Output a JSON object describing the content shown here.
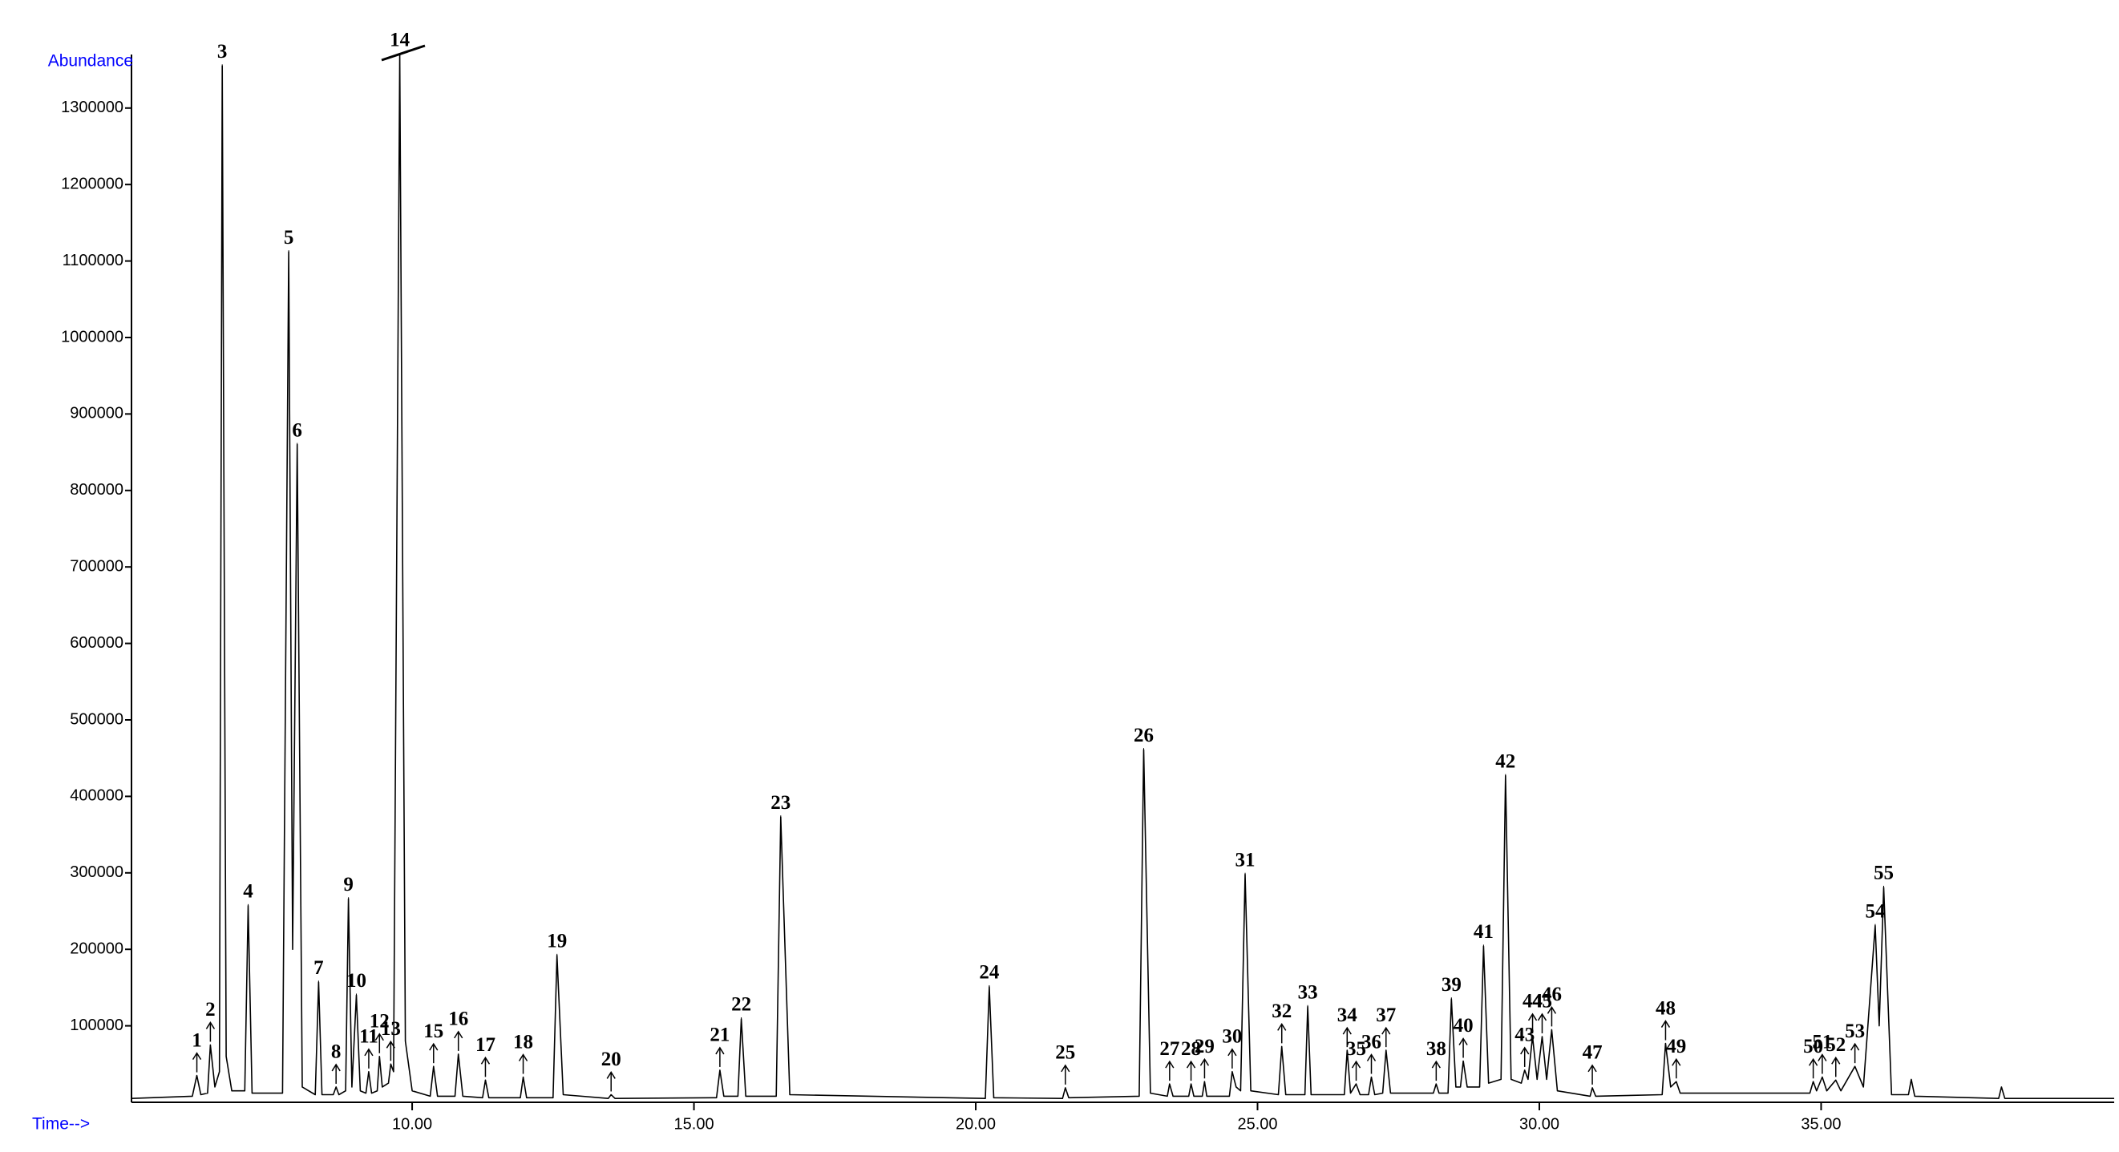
{
  "chart_data": {
    "type": "line",
    "ylabel": "Abundance",
    "xlabel": "Time-->",
    "color": "#000000",
    "xlim": [
      5.02,
      40.2
    ],
    "ylim": [
      0,
      1370000
    ],
    "xticks": [
      {
        "value": 10,
        "label": "10.00"
      },
      {
        "value": 15,
        "label": "15.00"
      },
      {
        "value": 20,
        "label": "20.00"
      },
      {
        "value": 25,
        "label": "25.00"
      },
      {
        "value": 30,
        "label": "30.00"
      },
      {
        "value": 35,
        "label": "35.00"
      }
    ],
    "yticks": [
      100000,
      200000,
      300000,
      400000,
      500000,
      600000,
      700000,
      800000,
      900000,
      1000000,
      1100000,
      1200000,
      1300000
    ],
    "x": [
      5.02,
      6.1,
      6.18,
      6.25,
      6.37,
      6.42,
      6.5,
      6.58,
      6.63,
      6.7,
      6.8,
      7.03,
      7.09,
      7.16,
      7.7,
      7.81,
      7.88,
      7.96,
      8.05,
      8.28,
      8.34,
      8.4,
      8.6,
      8.65,
      8.7,
      8.82,
      8.87,
      8.93,
      9.01,
      9.08,
      9.18,
      9.23,
      9.28,
      9.38,
      9.42,
      9.47,
      9.58,
      9.62,
      9.67,
      9.78,
      9.88,
      10.0,
      10.32,
      10.38,
      10.45,
      10.76,
      10.82,
      10.9,
      11.25,
      11.3,
      11.36,
      11.92,
      11.97,
      12.03,
      12.5,
      12.57,
      12.68,
      13.48,
      13.53,
      13.6,
      15.4,
      15.46,
      15.53,
      15.78,
      15.84,
      15.92,
      16.46,
      16.54,
      16.7,
      20.17,
      20.24,
      20.32,
      21.54,
      21.59,
      21.65,
      22.9,
      22.98,
      23.1,
      23.4,
      23.44,
      23.5,
      23.78,
      23.82,
      23.87,
      24.02,
      24.06,
      24.1,
      24.5,
      24.55,
      24.62,
      24.7,
      24.78,
      24.88,
      25.37,
      25.43,
      25.5,
      25.84,
      25.89,
      25.95,
      26.54,
      26.59,
      26.65,
      26.75,
      26.82,
      26.97,
      27.02,
      27.08,
      27.22,
      27.28,
      27.36,
      28.12,
      28.17,
      28.22,
      28.38,
      28.44,
      28.52,
      28.6,
      28.65,
      28.72,
      28.94,
      29.01,
      29.1,
      29.32,
      29.4,
      29.5,
      29.68,
      29.74,
      29.8,
      29.88,
      29.96,
      30.05,
      30.13,
      30.22,
      30.32,
      30.9,
      30.94,
      31.0,
      32.18,
      32.24,
      32.33,
      32.43,
      32.5,
      34.8,
      34.86,
      34.92,
      35.02,
      35.1,
      35.26,
      35.35,
      35.6,
      35.75,
      35.96,
      36.03,
      36.11,
      36.25,
      36.55,
      36.6,
      36.66,
      38.15,
      38.2,
      38.26,
      40.2
    ],
    "values": [
      5000,
      8000,
      35000,
      10000,
      12000,
      75000,
      20000,
      40000,
      1355000,
      60000,
      15000,
      15000,
      257000,
      12000,
      12000,
      1112000,
      200000,
      860000,
      20000,
      10000,
      157000,
      10000,
      10000,
      20000,
      10000,
      15000,
      266000,
      20000,
      140000,
      15000,
      12000,
      40000,
      12000,
      15000,
      60000,
      20000,
      25000,
      50000,
      40000,
      1370000,
      80000,
      15000,
      8000,
      47000,
      8000,
      8000,
      63000,
      8000,
      6000,
      29000,
      6000,
      6000,
      33000,
      6000,
      6000,
      192000,
      10000,
      5000,
      10000,
      5000,
      6000,
      42000,
      8000,
      8000,
      109000,
      8000,
      8000,
      373000,
      10000,
      5000,
      151000,
      6000,
      5000,
      19000,
      6000,
      8000,
      461000,
      12000,
      8000,
      24000,
      8000,
      8000,
      24000,
      8000,
      8000,
      27000,
      8000,
      8000,
      40000,
      20000,
      15000,
      298000,
      15000,
      10000,
      73000,
      10000,
      10000,
      125000,
      10000,
      10000,
      68000,
      12000,
      24000,
      10000,
      10000,
      33000,
      10000,
      12000,
      68000,
      12000,
      12000,
      24000,
      12000,
      12000,
      135000,
      20000,
      20000,
      54000,
      20000,
      20000,
      204000,
      25000,
      30000,
      427000,
      30000,
      25000,
      42000,
      30000,
      86000,
      30000,
      86000,
      30000,
      95000,
      15000,
      8000,
      19000,
      8000,
      10000,
      77000,
      20000,
      27000,
      12000,
      12000,
      27000,
      15000,
      33000,
      15000,
      29000,
      15000,
      47000,
      20000,
      231000,
      100000,
      281000,
      10000,
      10000,
      30000,
      8000,
      5000,
      20000,
      5000,
      5000
    ],
    "annotations": [
      {
        "text": "1",
        "x": 6.18,
        "y": 35000
      },
      {
        "text": "2",
        "x": 6.42,
        "y": 75000
      },
      {
        "text": "3",
        "x": 6.63,
        "y": 1355000
      },
      {
        "text": "4",
        "x": 7.09,
        "y": 257000
      },
      {
        "text": "5",
        "x": 7.81,
        "y": 1112000
      },
      {
        "text": "6",
        "x": 7.96,
        "y": 860000
      },
      {
        "text": "7",
        "x": 8.34,
        "y": 157000
      },
      {
        "text": "8",
        "x": 8.65,
        "y": 20000
      },
      {
        "text": "9",
        "x": 8.87,
        "y": 266000
      },
      {
        "text": "10",
        "x": 9.01,
        "y": 140000
      },
      {
        "text": "11",
        "x": 9.23,
        "y": 40000
      },
      {
        "text": "12",
        "x": 9.42,
        "y": 60000
      },
      {
        "text": "13",
        "x": 9.62,
        "y": 50000
      },
      {
        "text": "14",
        "x": 9.78,
        "y": 1370000
      },
      {
        "text": "15",
        "x": 10.38,
        "y": 47000
      },
      {
        "text": "16",
        "x": 10.82,
        "y": 63000
      },
      {
        "text": "17",
        "x": 11.3,
        "y": 29000
      },
      {
        "text": "18",
        "x": 11.97,
        "y": 33000
      },
      {
        "text": "19",
        "x": 12.57,
        "y": 192000
      },
      {
        "text": "20",
        "x": 13.53,
        "y": 10000
      },
      {
        "text": "21",
        "x": 15.46,
        "y": 42000
      },
      {
        "text": "22",
        "x": 15.84,
        "y": 109000
      },
      {
        "text": "23",
        "x": 16.54,
        "y": 373000
      },
      {
        "text": "24",
        "x": 20.24,
        "y": 151000
      },
      {
        "text": "25",
        "x": 21.59,
        "y": 19000
      },
      {
        "text": "26",
        "x": 22.98,
        "y": 461000
      },
      {
        "text": "27",
        "x": 23.44,
        "y": 24000
      },
      {
        "text": "28",
        "x": 23.82,
        "y": 24000
      },
      {
        "text": "29",
        "x": 24.06,
        "y": 27000
      },
      {
        "text": "30",
        "x": 24.55,
        "y": 40000
      },
      {
        "text": "31",
        "x": 24.78,
        "y": 298000
      },
      {
        "text": "32",
        "x": 25.43,
        "y": 73000
      },
      {
        "text": "33",
        "x": 25.89,
        "y": 125000
      },
      {
        "text": "34",
        "x": 26.59,
        "y": 68000
      },
      {
        "text": "35",
        "x": 26.75,
        "y": 24000
      },
      {
        "text": "36",
        "x": 27.02,
        "y": 33000
      },
      {
        "text": "37",
        "x": 27.28,
        "y": 68000
      },
      {
        "text": "38",
        "x": 28.17,
        "y": 24000
      },
      {
        "text": "39",
        "x": 28.44,
        "y": 135000
      },
      {
        "text": "40",
        "x": 28.65,
        "y": 54000
      },
      {
        "text": "41",
        "x": 29.01,
        "y": 204000
      },
      {
        "text": "42",
        "x": 29.4,
        "y": 427000
      },
      {
        "text": "43",
        "x": 29.74,
        "y": 42000
      },
      {
        "text": "44",
        "x": 29.88,
        "y": 86000
      },
      {
        "text": "45",
        "x": 30.05,
        "y": 86000
      },
      {
        "text": "46",
        "x": 30.22,
        "y": 95000
      },
      {
        "text": "47",
        "x": 30.94,
        "y": 19000
      },
      {
        "text": "48",
        "x": 32.24,
        "y": 77000
      },
      {
        "text": "49",
        "x": 32.43,
        "y": 27000
      },
      {
        "text": "50",
        "x": 34.86,
        "y": 27000
      },
      {
        "text": "51",
        "x": 35.02,
        "y": 33000
      },
      {
        "text": "52",
        "x": 35.26,
        "y": 29000
      },
      {
        "text": "53",
        "x": 35.6,
        "y": 47000
      },
      {
        "text": "54",
        "x": 35.96,
        "y": 231000
      },
      {
        "text": "55",
        "x": 36.11,
        "y": 281000
      }
    ]
  }
}
